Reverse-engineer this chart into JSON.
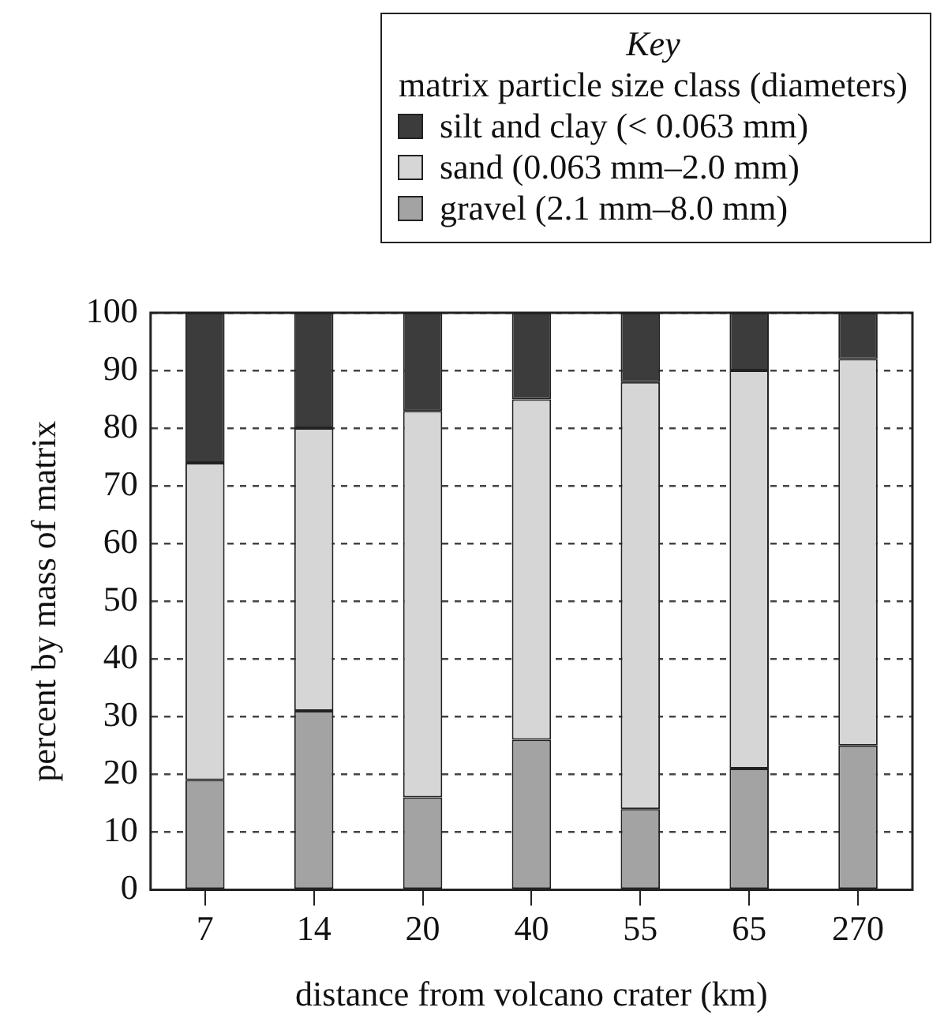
{
  "chart_data": {
    "type": "bar",
    "stacked": true,
    "legend_title": "Key\nmatrix particle size class (diameters)",
    "legend": "top right",
    "xlabel": "distance from volcano crater (km)",
    "ylabel": "percent by mass of matrix",
    "categories": [
      "7",
      "14",
      "20",
      "40",
      "55",
      "65",
      "270"
    ],
    "series": [
      {
        "name": "gravel (2.1 mm–8.0 mm)",
        "color": "#a3a3a3",
        "values": [
          19,
          31,
          16,
          26,
          14,
          21,
          25
        ]
      },
      {
        "name": "sand (0.063 mm–2.0 mm)",
        "color": "#d6d6d6",
        "values": [
          55,
          49,
          67,
          59,
          74,
          69,
          67
        ]
      },
      {
        "name": "silt and clay (< 0.063 mm)",
        "color": "#3c3c3c",
        "values": [
          26,
          20,
          17,
          15,
          12,
          10,
          8
        ]
      }
    ],
    "ylim": [
      0,
      100
    ],
    "yticks": [
      0,
      10,
      20,
      30,
      40,
      50,
      60,
      70,
      80,
      90,
      100
    ],
    "grid": "y"
  }
}
